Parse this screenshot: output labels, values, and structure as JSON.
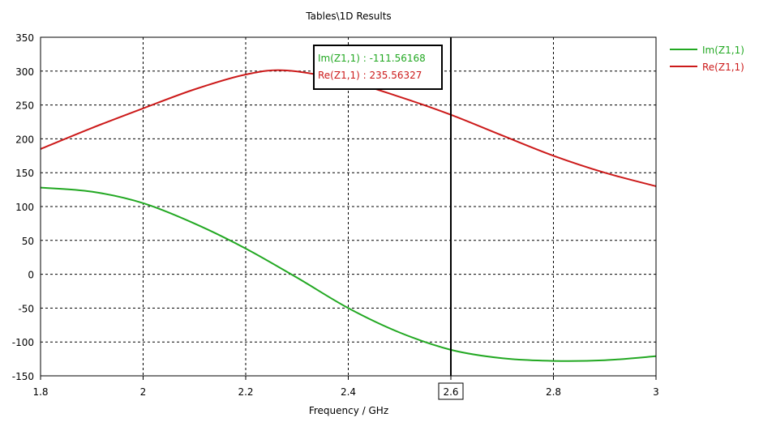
{
  "chart_data": {
    "type": "line",
    "title": "Tables\\1D Results",
    "xlabel": "Frequency / GHz",
    "ylabel": "",
    "xlim": [
      1.8,
      3.0
    ],
    "ylim": [
      -150,
      350
    ],
    "xticks": [
      "1.8",
      "2",
      "2.2",
      "2.4",
      "2.6",
      "2.8",
      "3"
    ],
    "xtick_values": [
      1.8,
      2.0,
      2.2,
      2.4,
      2.6,
      2.8,
      3.0
    ],
    "yticks": [
      "350",
      "300",
      "250",
      "200",
      "150",
      "100",
      "50",
      "0",
      "-50",
      "-100",
      "-150"
    ],
    "ytick_values": [
      350,
      300,
      250,
      200,
      150,
      100,
      50,
      0,
      -50,
      -100,
      -150
    ],
    "grid": true,
    "legend_position": "right",
    "series": [
      {
        "name": "Im(Z1,1)",
        "color": "#22a822",
        "x": [
          1.8,
          1.9,
          2.0,
          2.1,
          2.2,
          2.3,
          2.4,
          2.5,
          2.6,
          2.7,
          2.8,
          2.9,
          3.0
        ],
        "y": [
          128,
          122,
          105,
          75,
          38,
          -5,
          -50,
          -86,
          -111.56,
          -124,
          -128,
          -127,
          -121
        ]
      },
      {
        "name": "Re(Z1,1)",
        "color": "#cc1a1a",
        "x": [
          1.8,
          1.9,
          2.0,
          2.1,
          2.2,
          2.28,
          2.4,
          2.5,
          2.6,
          2.7,
          2.8,
          2.9,
          3.0
        ],
        "y": [
          185,
          216,
          245,
          273,
          295,
          301,
          285,
          262,
          235.56,
          205,
          175,
          150,
          130
        ]
      }
    ],
    "marker": {
      "x": 2.6,
      "x_label": "2.6",
      "readouts": [
        {
          "text": "Im(Z1,1) : -111.56168",
          "color": "#22a822"
        },
        {
          "text": "Re(Z1,1) : 235.56327",
          "color": "#cc1a1a"
        }
      ]
    }
  }
}
